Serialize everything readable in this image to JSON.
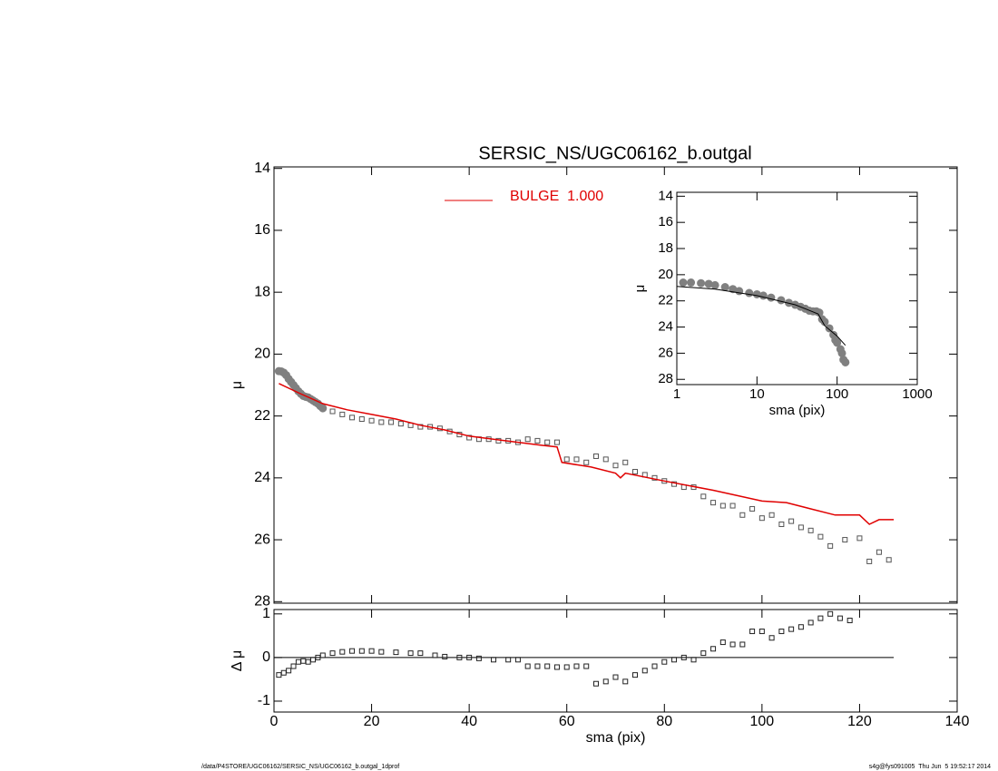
{
  "chart_data": [
    {
      "type": "scatter",
      "title": "SERSIC_NS/UGC06162_b.outgal",
      "ylabel": "μ",
      "xlim": [
        0,
        140
      ],
      "ylim": [
        13.95,
        28.05
      ],
      "y_reversed": true,
      "xticks": [
        0,
        20,
        40,
        60,
        80,
        100,
        120,
        140
      ],
      "yticks": [
        14,
        16,
        18,
        20,
        22,
        24,
        26,
        28
      ],
      "legend": "top-left",
      "series": [
        {
          "style": "marker",
          "marker": "circle",
          "color": "#808080",
          "x": [
            1,
            1.5,
            2,
            2.5,
            3,
            3.5,
            4,
            4.5,
            5,
            5.5,
            6,
            6.5,
            7,
            7.5,
            8,
            8.5,
            9,
            9.5,
            10
          ],
          "values": [
            20.55,
            20.56,
            20.6,
            20.68,
            20.8,
            20.9,
            21.0,
            21.1,
            21.2,
            21.28,
            21.35,
            21.38,
            21.4,
            21.45,
            21.5,
            21.55,
            21.6,
            21.68,
            21.75
          ]
        },
        {
          "style": "marker",
          "marker": "square",
          "color": "#555555",
          "x": [
            12,
            14,
            16,
            18,
            20,
            22,
            24,
            26,
            28,
            30,
            32,
            34,
            36,
            38,
            40,
            42,
            44,
            46,
            48,
            50,
            52,
            54,
            56,
            58,
            60,
            62,
            64,
            66,
            68,
            70,
            72,
            74,
            76,
            78,
            80,
            82,
            84,
            86,
            88,
            90,
            92,
            94,
            96,
            98,
            100,
            102,
            104,
            106,
            108,
            110,
            112,
            114,
            117,
            120,
            122,
            124,
            126
          ],
          "values": [
            21.85,
            21.95,
            22.05,
            22.1,
            22.15,
            22.2,
            22.2,
            22.25,
            22.3,
            22.35,
            22.35,
            22.4,
            22.5,
            22.6,
            22.7,
            22.75,
            22.75,
            22.8,
            22.8,
            22.85,
            22.75,
            22.8,
            22.85,
            22.85,
            23.4,
            23.4,
            23.5,
            23.3,
            23.4,
            23.6,
            23.5,
            23.8,
            23.9,
            24.0,
            24.1,
            24.2,
            24.3,
            24.3,
            24.6,
            24.8,
            24.9,
            24.9,
            25.2,
            25.0,
            25.3,
            25.2,
            25.5,
            25.4,
            25.6,
            25.7,
            25.9,
            26.2,
            26.0,
            25.95,
            26.7,
            26.4,
            26.65
          ]
        },
        {
          "name": "BULGE  1.000",
          "style": "line",
          "color": "#e00000",
          "x": [
            1,
            5,
            10,
            15,
            20,
            25,
            30,
            35,
            40,
            45,
            50,
            55,
            58,
            59,
            65,
            70,
            71,
            72,
            80,
            90,
            100,
            105,
            110,
            115,
            120,
            122,
            124,
            127
          ],
          "values": [
            20.95,
            21.25,
            21.6,
            21.8,
            21.95,
            22.1,
            22.3,
            22.45,
            22.65,
            22.75,
            22.85,
            22.95,
            23.0,
            23.5,
            23.65,
            23.85,
            24.0,
            23.85,
            24.1,
            24.4,
            24.75,
            24.8,
            25.0,
            25.2,
            25.2,
            25.5,
            25.35,
            25.35
          ]
        }
      ]
    },
    {
      "type": "scatter",
      "xlabel": "sma (pix)",
      "ylabel": "Δ μ",
      "xlim": [
        0,
        140
      ],
      "ylim": [
        -1.25,
        1.1
      ],
      "xticks": [
        0,
        20,
        40,
        60,
        80,
        100,
        120,
        140
      ],
      "yticks": [
        1,
        0,
        -1
      ],
      "series": [
        {
          "style": "line",
          "color": "#000000",
          "x": [
            0,
            127
          ],
          "values": [
            0,
            0
          ]
        },
        {
          "style": "marker",
          "marker": "square",
          "color": "#222222",
          "x": [
            1,
            2,
            3,
            4,
            5,
            6,
            7,
            8,
            9,
            10,
            12,
            14,
            16,
            18,
            20,
            22,
            25,
            28,
            30,
            33,
            35,
            38,
            40,
            42,
            45,
            48,
            50,
            52,
            54,
            56,
            58,
            60,
            62,
            64,
            66,
            68,
            70,
            72,
            74,
            76,
            78,
            80,
            82,
            84,
            86,
            88,
            90,
            92,
            94,
            96,
            98,
            100,
            102,
            104,
            106,
            108,
            110,
            112,
            114,
            116,
            118
          ],
          "values": [
            -0.4,
            -0.35,
            -0.3,
            -0.2,
            -0.1,
            -0.08,
            -0.1,
            -0.05,
            0,
            0.05,
            0.1,
            0.13,
            0.15,
            0.15,
            0.15,
            0.13,
            0.12,
            0.1,
            0.1,
            0.05,
            0.02,
            0.0,
            0.0,
            -0.02,
            -0.05,
            -0.05,
            -0.05,
            -0.2,
            -0.2,
            -0.2,
            -0.22,
            -0.22,
            -0.2,
            -0.2,
            -0.6,
            -0.55,
            -0.45,
            -0.55,
            -0.4,
            -0.3,
            -0.2,
            -0.1,
            -0.05,
            0.0,
            -0.05,
            0.1,
            0.2,
            0.35,
            0.3,
            0.3,
            0.6,
            0.6,
            0.45,
            0.6,
            0.65,
            0.7,
            0.8,
            0.9,
            1.0,
            0.9,
            0.85
          ]
        }
      ]
    },
    {
      "type": "scatter",
      "xlabel": "sma (pix)",
      "ylabel": "μ",
      "xlog": true,
      "xlim": [
        1,
        1000
      ],
      "ylim": [
        13.7,
        28.4
      ],
      "y_reversed": true,
      "xticks": [
        1,
        10,
        100,
        1000
      ],
      "yticks": [
        14,
        16,
        18,
        20,
        22,
        24,
        26,
        28
      ],
      "series": [
        {
          "style": "marker",
          "marker": "circle",
          "color": "#808080",
          "x": [
            1.2,
            1.5,
            2,
            2.5,
            3,
            4,
            5,
            6,
            8,
            10,
            12,
            15,
            20,
            25,
            30,
            35,
            40,
            45,
            50,
            55,
            60,
            65,
            70,
            80,
            90,
            95,
            100,
            110,
            115,
            120,
            127
          ],
          "values": [
            20.6,
            20.6,
            20.65,
            20.7,
            20.8,
            20.95,
            21.1,
            21.25,
            21.4,
            21.5,
            21.6,
            21.75,
            21.95,
            22.15,
            22.3,
            22.45,
            22.6,
            22.75,
            22.8,
            22.8,
            22.9,
            23.4,
            23.6,
            24.1,
            24.6,
            25.0,
            25.2,
            25.7,
            26.0,
            26.5,
            26.7
          ]
        },
        {
          "style": "line",
          "color": "#000000",
          "x": [
            1,
            3,
            10,
            30,
            58,
            70,
            100,
            127
          ],
          "values": [
            20.9,
            21.1,
            21.6,
            22.3,
            23.0,
            23.9,
            24.7,
            25.4
          ]
        }
      ]
    }
  ],
  "footer": {
    "left": "/data/P4STORE/UGC06162/SERSIC_NS/UGC06162_b.outgal_1dprof",
    "right": "s4g@fys091005  Thu Jun  5 19:52:17 2014"
  }
}
